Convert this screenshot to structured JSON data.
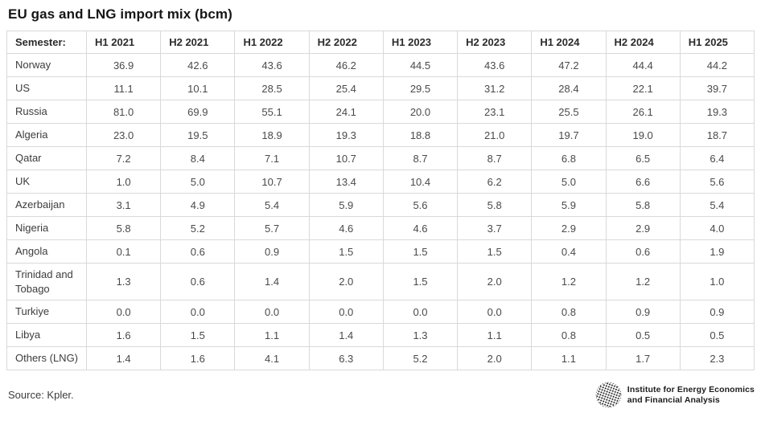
{
  "chart_data": {
    "type": "table",
    "title": "EU gas and LNG import mix (bcm)",
    "unit": "bcm",
    "corner_label": "Semester:",
    "columns": [
      "H1 2021",
      "H2 2021",
      "H1 2022",
      "H2 2022",
      "H1 2023",
      "H2 2023",
      "H1 2024",
      "H2 2024",
      "H1 2025"
    ],
    "rows": [
      {
        "label": "Norway",
        "values": [
          "36.9",
          "42.6",
          "43.6",
          "46.2",
          "44.5",
          "43.6",
          "47.2",
          "44.4",
          "44.2"
        ]
      },
      {
        "label": "US",
        "values": [
          "11.1",
          "10.1",
          "28.5",
          "25.4",
          "29.5",
          "31.2",
          "28.4",
          "22.1",
          "39.7"
        ]
      },
      {
        "label": "Russia",
        "values": [
          "81.0",
          "69.9",
          "55.1",
          "24.1",
          "20.0",
          "23.1",
          "25.5",
          "26.1",
          "19.3"
        ]
      },
      {
        "label": "Algeria",
        "values": [
          "23.0",
          "19.5",
          "18.9",
          "19.3",
          "18.8",
          "21.0",
          "19.7",
          "19.0",
          "18.7"
        ]
      },
      {
        "label": "Qatar",
        "values": [
          "7.2",
          "8.4",
          "7.1",
          "10.7",
          "8.7",
          "8.7",
          "6.8",
          "6.5",
          "6.4"
        ]
      },
      {
        "label": "UK",
        "values": [
          "1.0",
          "5.0",
          "10.7",
          "13.4",
          "10.4",
          "6.2",
          "5.0",
          "6.6",
          "5.6"
        ]
      },
      {
        "label": "Azerbaijan",
        "values": [
          "3.1",
          "4.9",
          "5.4",
          "5.9",
          "5.6",
          "5.8",
          "5.9",
          "5.8",
          "5.4"
        ]
      },
      {
        "label": "Nigeria",
        "values": [
          "5.8",
          "5.2",
          "5.7",
          "4.6",
          "4.6",
          "3.7",
          "2.9",
          "2.9",
          "4.0"
        ]
      },
      {
        "label": "Angola",
        "values": [
          "0.1",
          "0.6",
          "0.9",
          "1.5",
          "1.5",
          "1.5",
          "0.4",
          "0.6",
          "1.9"
        ]
      },
      {
        "label": "Trinidad and Tobago",
        "values": [
          "1.3",
          "0.6",
          "1.4",
          "2.0",
          "1.5",
          "2.0",
          "1.2",
          "1.2",
          "1.0"
        ]
      },
      {
        "label": "Turkiye",
        "values": [
          "0.0",
          "0.0",
          "0.0",
          "0.0",
          "0.0",
          "0.0",
          "0.8",
          "0.9",
          "0.9"
        ]
      },
      {
        "label": "Libya",
        "values": [
          "1.6",
          "1.5",
          "1.1",
          "1.4",
          "1.3",
          "1.1",
          "0.8",
          "0.5",
          "0.5"
        ]
      },
      {
        "label": "Others (LNG)",
        "values": [
          "1.4",
          "1.6",
          "4.1",
          "6.3",
          "5.2",
          "2.0",
          "1.1",
          "1.7",
          "2.3"
        ]
      }
    ],
    "source": "Source: Kpler."
  },
  "footer": {
    "source": "Source: Kpler.",
    "logo": {
      "icon": "globe-dots-icon",
      "line1": "Institute for Energy Economics",
      "line2": "and Financial Analysis"
    }
  },
  "colors": {
    "background": "#ffffff",
    "border": "#d9d9d9",
    "title_text": "#161616",
    "header_text": "#2b2b2b",
    "cell_text": "#4a4a4a",
    "logo_ink": "#1d1d1d"
  }
}
